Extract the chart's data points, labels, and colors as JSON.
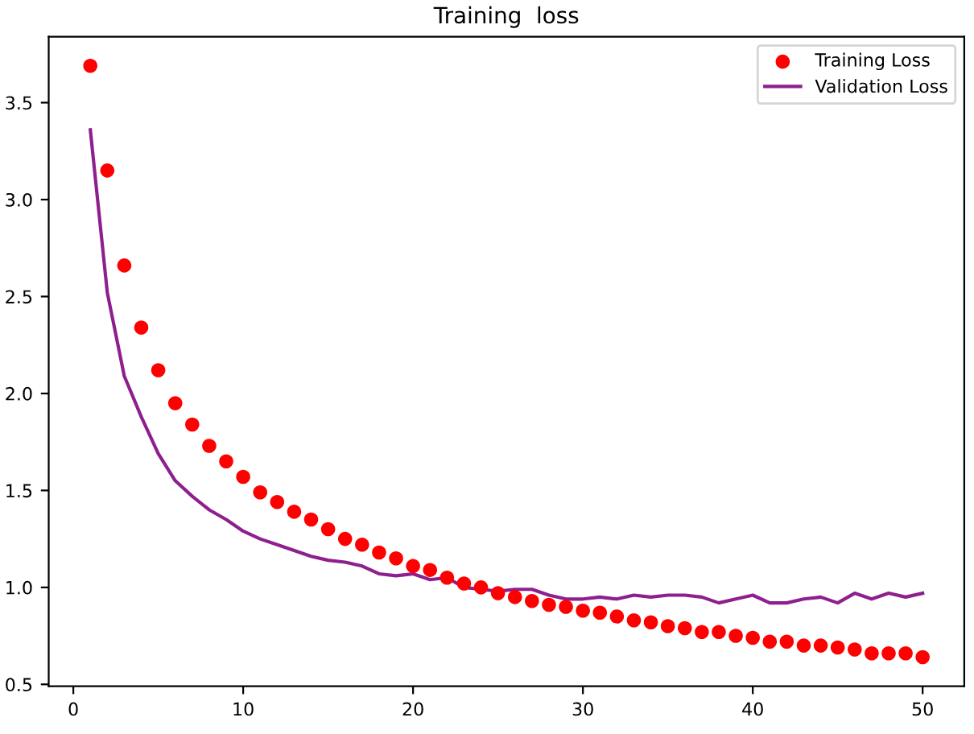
{
  "chart_data": {
    "type": "line",
    "title": "Training  loss",
    "x": [
      1,
      2,
      3,
      4,
      5,
      6,
      7,
      8,
      9,
      10,
      11,
      12,
      13,
      14,
      15,
      16,
      17,
      18,
      19,
      20,
      21,
      22,
      23,
      24,
      25,
      26,
      27,
      28,
      29,
      30,
      31,
      32,
      33,
      34,
      35,
      36,
      37,
      38,
      39,
      40,
      41,
      42,
      43,
      44,
      45,
      46,
      47,
      48,
      49,
      50
    ],
    "series": [
      {
        "name": "Training Loss",
        "type": "scatter",
        "color": "#ff0000",
        "marker": "circle",
        "values": [
          3.69,
          3.15,
          2.66,
          2.34,
          2.12,
          1.95,
          1.84,
          1.73,
          1.65,
          1.57,
          1.49,
          1.44,
          1.39,
          1.35,
          1.3,
          1.25,
          1.22,
          1.18,
          1.15,
          1.11,
          1.09,
          1.05,
          1.02,
          1.0,
          0.97,
          0.95,
          0.93,
          0.91,
          0.9,
          0.88,
          0.87,
          0.85,
          0.83,
          0.82,
          0.8,
          0.79,
          0.77,
          0.77,
          0.75,
          0.74,
          0.72,
          0.72,
          0.7,
          0.7,
          0.69,
          0.68,
          0.66,
          0.66,
          0.66,
          0.64
        ]
      },
      {
        "name": "Validation Loss",
        "color": "#8e1f8e",
        "values": [
          3.36,
          2.52,
          2.09,
          1.88,
          1.69,
          1.55,
          1.47,
          1.4,
          1.35,
          1.29,
          1.25,
          1.22,
          1.19,
          1.16,
          1.14,
          1.13,
          1.11,
          1.07,
          1.06,
          1.07,
          1.04,
          1.05,
          1.0,
          0.99,
          0.98,
          0.99,
          0.99,
          0.96,
          0.94,
          0.94,
          0.95,
          0.94,
          0.96,
          0.95,
          0.96,
          0.96,
          0.95,
          0.92,
          0.94,
          0.96,
          0.92,
          0.92,
          0.94,
          0.95,
          0.92,
          0.97,
          0.94,
          0.97,
          0.95,
          0.97
        ]
      }
    ],
    "xlim": [
      -1.45,
      52.45
    ],
    "xticks": [
      0,
      10,
      20,
      30,
      40,
      50
    ],
    "ylim": [
      0.49,
      3.84
    ],
    "yticks": [
      0.5,
      {
        "value": 1,
        "label": "1.0"
      },
      1.5,
      {
        "value": 2,
        "label": "2.0"
      },
      2.5,
      {
        "value": 3,
        "label": "3.0"
      },
      3.5
    ],
    "legend": "top right",
    "grid": false
  }
}
